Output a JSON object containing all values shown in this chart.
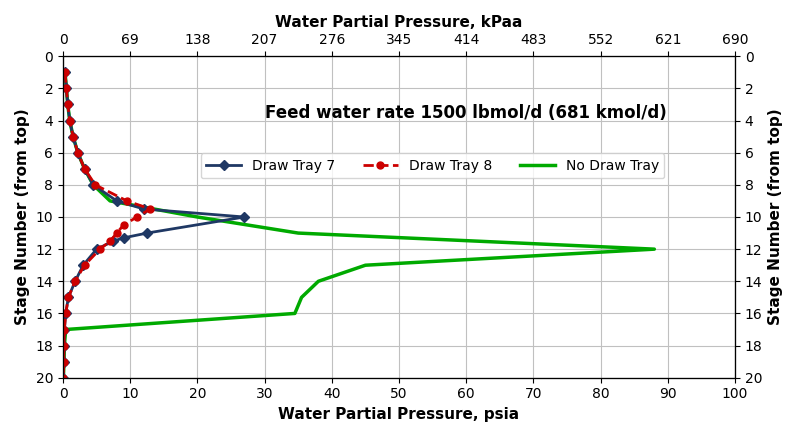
{
  "title_annotation": "Feed water rate 1500 lbmol/d (681 kmol/d)",
  "xlabel_bottom": "Water Partial Pressure, psia",
  "xlabel_top": "Water Partial Pressure, kPaa",
  "ylabel": "Stage Number (from top)",
  "xlim_psia": [
    0,
    100
  ],
  "xlim_kpaa": [
    0,
    690
  ],
  "ylim": [
    0,
    20
  ],
  "xticks_bottom": [
    0,
    10,
    20,
    30,
    40,
    50,
    60,
    70,
    80,
    90,
    100
  ],
  "xticks_top": [
    0,
    69,
    138,
    207,
    276,
    345,
    414,
    483,
    552,
    621,
    690
  ],
  "yticks": [
    0,
    2,
    4,
    6,
    8,
    10,
    12,
    14,
    16,
    18,
    20
  ],
  "background_color": "#ffffff",
  "grid_color": "#c0c0c0",
  "draw_tray7_stages": [
    1,
    2,
    3,
    4,
    5,
    6,
    7,
    8,
    9,
    9.5,
    10,
    11,
    11.3,
    11.5,
    12,
    13,
    14,
    15,
    16,
    17,
    18,
    19,
    20
  ],
  "draw_tray7_psia": [
    0.3,
    0.5,
    0.7,
    1.0,
    1.5,
    2.2,
    3.2,
    4.5,
    8.0,
    12.0,
    27.0,
    12.5,
    9.0,
    7.5,
    5.0,
    3.0,
    1.8,
    0.8,
    0.4,
    0.2,
    0.15,
    0.1,
    0.05
  ],
  "draw_tray8_stages": [
    1,
    2,
    3,
    4,
    5,
    6,
    7,
    8,
    9,
    9.5,
    10,
    10.5,
    11,
    11.5,
    12,
    13,
    14,
    15,
    16,
    17,
    18,
    19,
    20
  ],
  "draw_tray8_psia": [
    0.3,
    0.5,
    0.7,
    1.0,
    1.5,
    2.2,
    3.2,
    4.8,
    9.5,
    13.0,
    11.0,
    9.0,
    8.0,
    7.0,
    5.5,
    3.2,
    1.8,
    0.8,
    0.4,
    0.2,
    0.15,
    0.1,
    0.05
  ],
  "no_draw_stages": [
    1,
    2,
    3,
    4,
    5,
    6,
    7,
    8,
    9,
    10,
    11,
    12,
    13,
    14,
    15,
    16,
    17,
    18,
    19,
    20
  ],
  "no_draw_psia": [
    0.3,
    0.5,
    0.7,
    1.0,
    1.5,
    2.2,
    3.2,
    4.5,
    7.0,
    20.0,
    35.0,
    88.0,
    45.0,
    38.0,
    35.5,
    34.5,
    0.4,
    0.2,
    0.15,
    0.05
  ],
  "color_tray7": "#1f3864",
  "color_tray8": "#cc0000",
  "color_no_draw": "#00aa00",
  "legend_title_fontsize": 12,
  "legend_fontsize": 10,
  "axis_label_fontsize": 11,
  "tick_fontsize": 10
}
